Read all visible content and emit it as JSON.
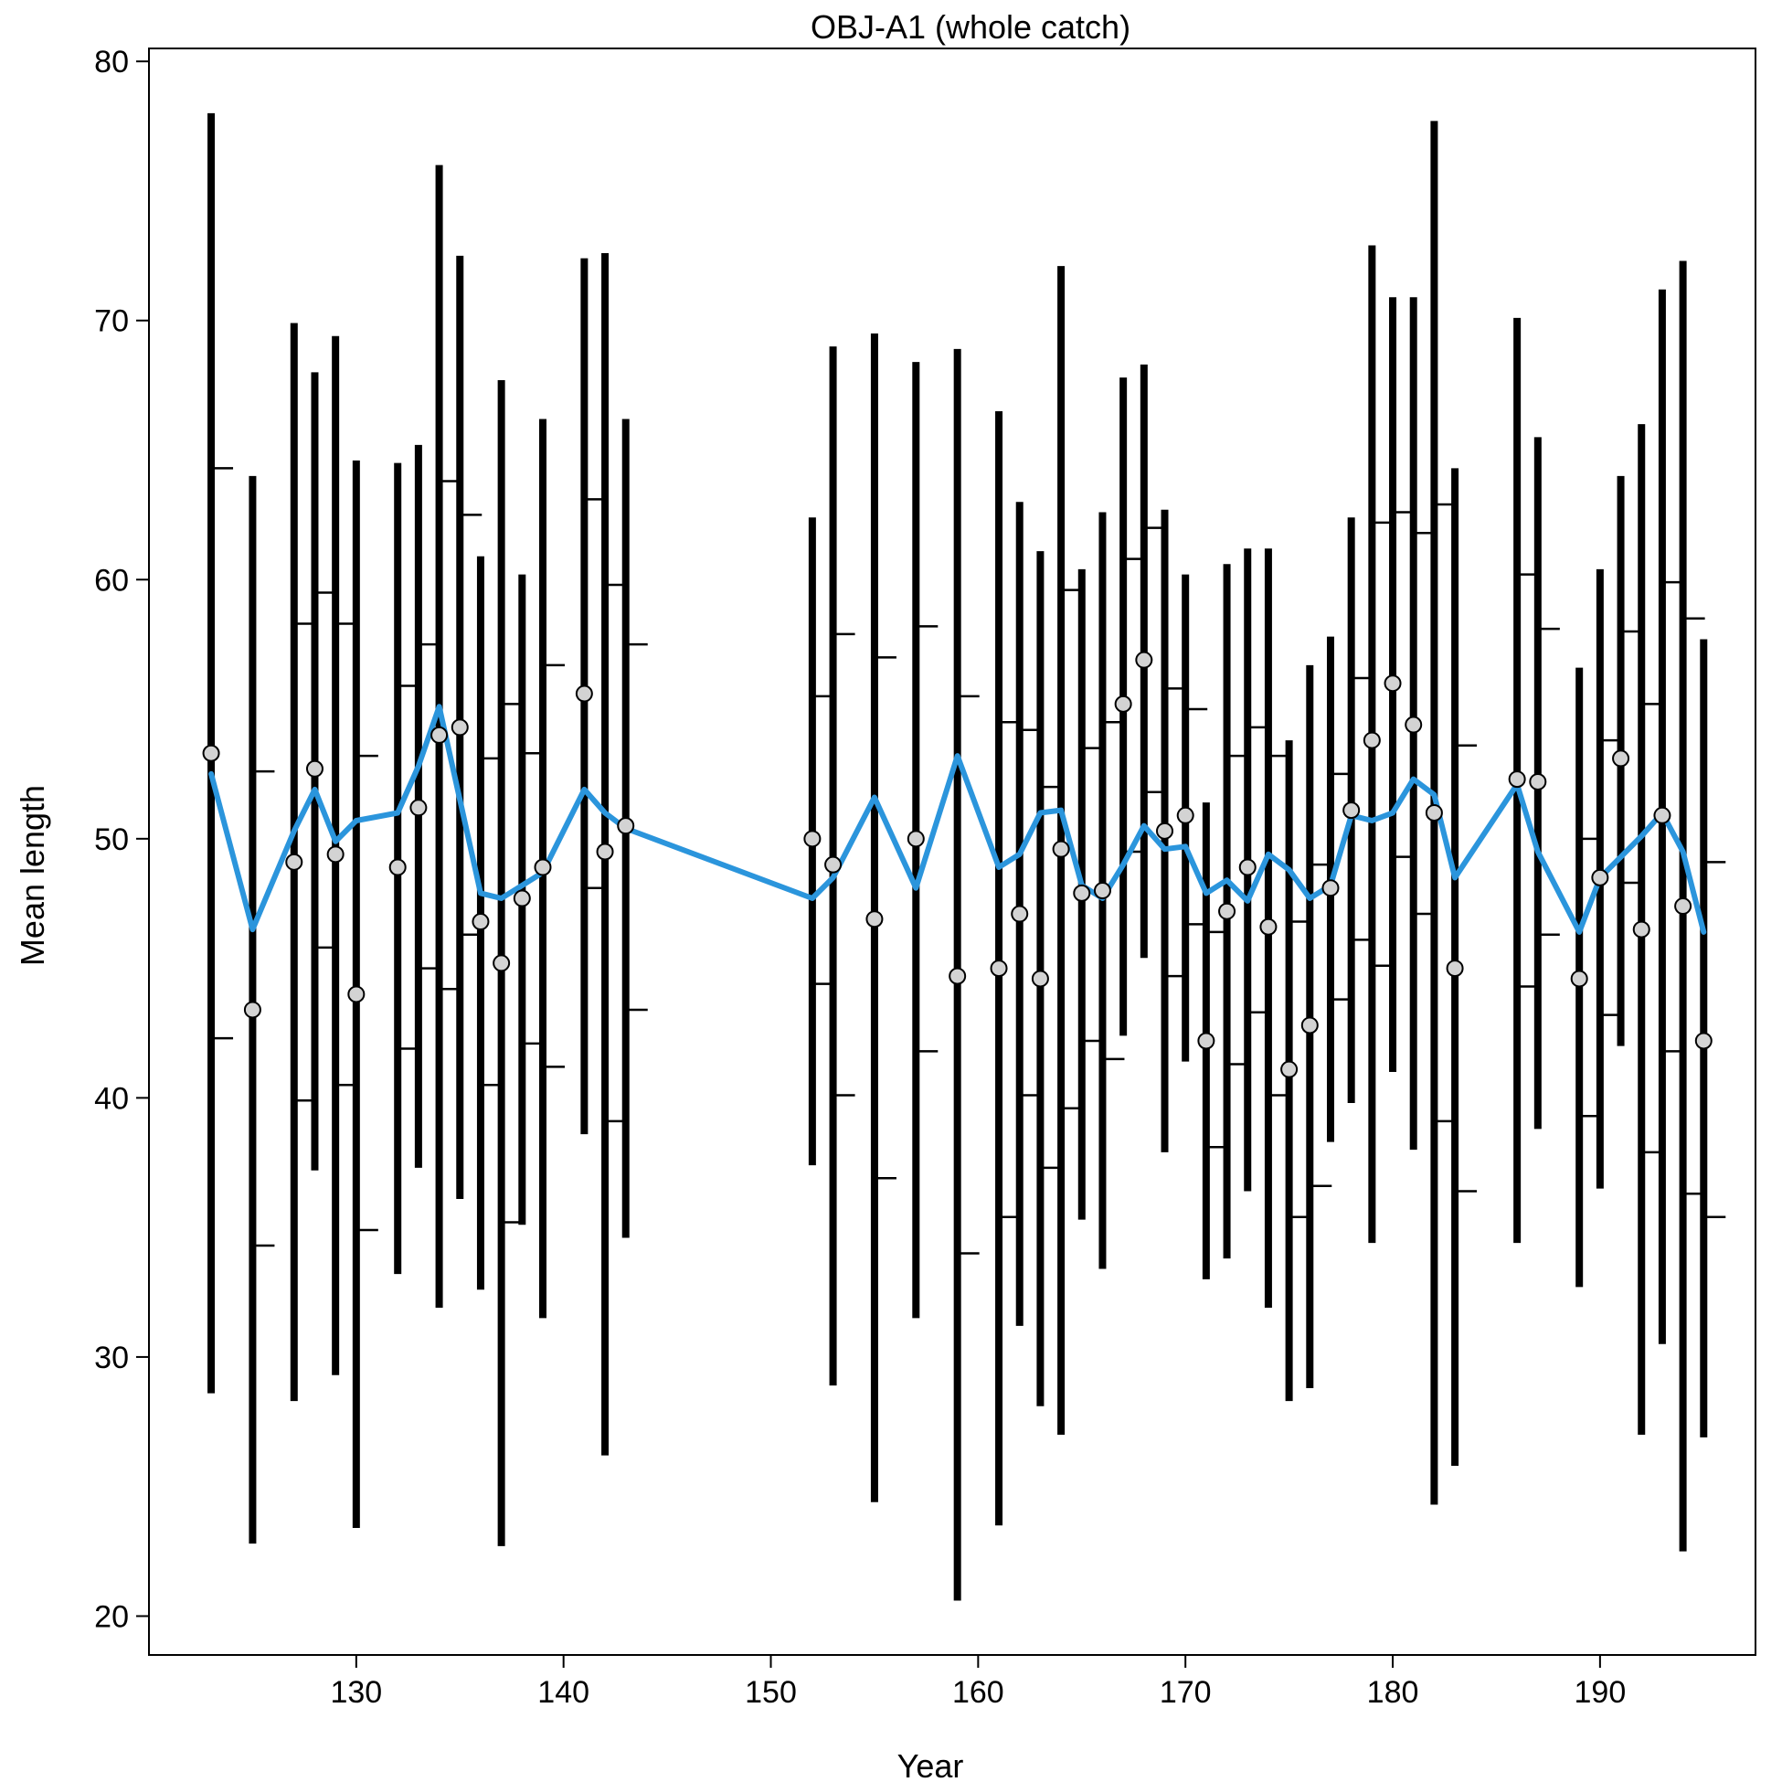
{
  "chart_data": {
    "type": "line",
    "title": "OBJ-A1 (whole catch)",
    "xlabel": "Year",
    "ylabel": "Mean length",
    "xlim": [
      120,
      197.5
    ],
    "ylim": [
      18.5,
      80.5
    ],
    "xticks": [
      130,
      140,
      150,
      160,
      170,
      180,
      190
    ],
    "yticks": [
      20,
      30,
      40,
      50,
      60,
      70,
      80
    ],
    "grid": false,
    "colors": {
      "expected_line": "#2b95dc",
      "observed_marker_fill": "#d3d3d3",
      "interval_bar": "#000000"
    },
    "series": [
      {
        "kind": "observed",
        "x": [
          123,
          125,
          127,
          128,
          129,
          130,
          132,
          133,
          134,
          135,
          136,
          137,
          138,
          139,
          141,
          142,
          143,
          152,
          153,
          155,
          157,
          159,
          161,
          162,
          163,
          164,
          165,
          166,
          167,
          168,
          169,
          170,
          171,
          172,
          173,
          174,
          175,
          176,
          177,
          178,
          179,
          180,
          181,
          182,
          183,
          186,
          187,
          189,
          190,
          191,
          192,
          193,
          194,
          195
        ],
        "y": [
          53.3,
          43.4,
          49.1,
          52.7,
          49.4,
          44.0,
          48.9,
          51.2,
          54.0,
          54.3,
          46.8,
          45.2,
          47.7,
          48.9,
          55.6,
          49.5,
          50.5,
          50.0,
          49.0,
          46.9,
          50.0,
          44.7,
          45.0,
          47.1,
          44.6,
          49.6,
          47.9,
          48.0,
          55.2,
          56.9,
          50.3,
          50.9,
          42.2,
          47.2,
          48.9,
          46.6,
          41.1,
          42.8,
          48.1,
          51.1,
          53.8,
          56.0,
          54.4,
          51.0,
          45.0,
          52.3,
          52.2,
          44.6,
          48.5,
          53.1,
          46.5,
          50.9,
          47.4,
          42.2
        ]
      },
      {
        "kind": "expected",
        "x": [
          123,
          125,
          127,
          128,
          129,
          130,
          132,
          133,
          134,
          135,
          136,
          137,
          138,
          139,
          141,
          142,
          143,
          152,
          153,
          155,
          157,
          159,
          161,
          162,
          163,
          164,
          165,
          166,
          167,
          168,
          169,
          170,
          171,
          172,
          173,
          174,
          175,
          176,
          177,
          178,
          179,
          180,
          181,
          182,
          183,
          186,
          187,
          189,
          190,
          191,
          192,
          193,
          194,
          195
        ],
        "y": [
          52.5,
          46.5,
          50.3,
          51.9,
          49.9,
          50.7,
          51.0,
          52.8,
          55.1,
          51.5,
          47.9,
          47.7,
          48.2,
          48.7,
          51.9,
          51.0,
          50.4,
          47.7,
          48.5,
          51.6,
          48.1,
          53.2,
          48.9,
          49.4,
          51.0,
          51.1,
          48.2,
          47.7,
          49.0,
          50.5,
          49.6,
          49.7,
          47.9,
          48.4,
          47.6,
          49.4,
          48.8,
          47.7,
          48.2,
          50.9,
          50.7,
          51.0,
          52.3,
          51.7,
          48.5,
          52.1,
          49.5,
          46.4,
          48.5,
          49.3,
          50.1,
          51.0,
          49.5,
          46.4
        ]
      }
    ],
    "intervals": {
      "x": [
        123,
        125,
        127,
        128,
        129,
        130,
        132,
        133,
        134,
        135,
        136,
        137,
        138,
        139,
        141,
        142,
        143,
        152,
        153,
        155,
        157,
        159,
        161,
        162,
        163,
        164,
        165,
        166,
        167,
        168,
        169,
        170,
        171,
        172,
        173,
        174,
        175,
        176,
        177,
        178,
        179,
        180,
        181,
        182,
        183,
        186,
        187,
        189,
        190,
        191,
        192,
        193,
        194,
        195
      ],
      "outer_low": [
        28.6,
        22.8,
        28.3,
        37.2,
        29.3,
        23.4,
        33.2,
        37.3,
        31.9,
        36.1,
        32.6,
        22.7,
        35.1,
        31.5,
        38.6,
        26.2,
        34.6,
        37.4,
        28.9,
        24.4,
        31.5,
        20.6,
        23.5,
        31.2,
        28.1,
        27.0,
        35.3,
        33.4,
        42.4,
        45.4,
        37.9,
        41.4,
        33.0,
        33.8,
        36.4,
        31.9,
        28.3,
        28.8,
        38.3,
        39.8,
        34.4,
        41.0,
        38.0,
        24.3,
        25.8,
        34.4,
        38.8,
        32.7,
        36.5,
        42.0,
        27.0,
        30.5,
        22.5,
        26.9
      ],
      "inner_low": [
        42.3,
        34.3,
        39.9,
        45.8,
        40.5,
        34.9,
        41.9,
        45.0,
        44.2,
        46.3,
        40.5,
        35.2,
        42.1,
        41.2,
        48.1,
        39.1,
        43.4,
        44.4,
        40.1,
        36.9,
        41.8,
        34.0,
        35.4,
        40.1,
        37.3,
        39.6,
        42.2,
        41.5,
        49.5,
        51.8,
        44.7,
        46.7,
        38.1,
        41.3,
        43.3,
        40.1,
        35.4,
        36.6,
        43.8,
        46.1,
        45.1,
        49.3,
        47.1,
        39.1,
        36.4,
        44.3,
        46.3,
        39.3,
        43.2,
        48.3,
        37.9,
        41.8,
        36.3,
        35.4
      ],
      "inner_high": [
        64.3,
        52.6,
        58.3,
        59.5,
        58.3,
        53.2,
        55.9,
        57.5,
        63.8,
        62.5,
        53.1,
        55.2,
        53.3,
        56.7,
        63.1,
        59.8,
        57.5,
        55.5,
        57.9,
        57.0,
        58.2,
        55.5,
        54.5,
        54.2,
        52.0,
        59.6,
        53.5,
        54.5,
        60.8,
        62.0,
        55.8,
        55.0,
        46.4,
        53.2,
        54.3,
        53.2,
        46.8,
        49.0,
        52.5,
        56.2,
        62.2,
        62.6,
        61.8,
        62.9,
        53.6,
        60.2,
        58.1,
        50.0,
        53.8,
        58.0,
        55.2,
        59.9,
        58.5,
        49.1
      ],
      "outer_high": [
        78.0,
        64.0,
        69.9,
        68.0,
        69.4,
        64.6,
        64.5,
        65.2,
        76.0,
        72.5,
        60.9,
        67.7,
        60.2,
        66.2,
        72.4,
        72.6,
        66.2,
        62.4,
        69.0,
        69.5,
        68.4,
        68.9,
        66.5,
        63.0,
        61.1,
        72.1,
        60.4,
        62.6,
        67.8,
        68.3,
        62.7,
        60.2,
        51.4,
        60.6,
        61.2,
        61.2,
        53.8,
        56.7,
        57.8,
        62.4,
        72.9,
        70.9,
        70.9,
        77.7,
        64.3,
        70.1,
        65.5,
        56.6,
        60.4,
        64.0,
        66.0,
        71.2,
        72.3,
        57.7
      ]
    }
  }
}
